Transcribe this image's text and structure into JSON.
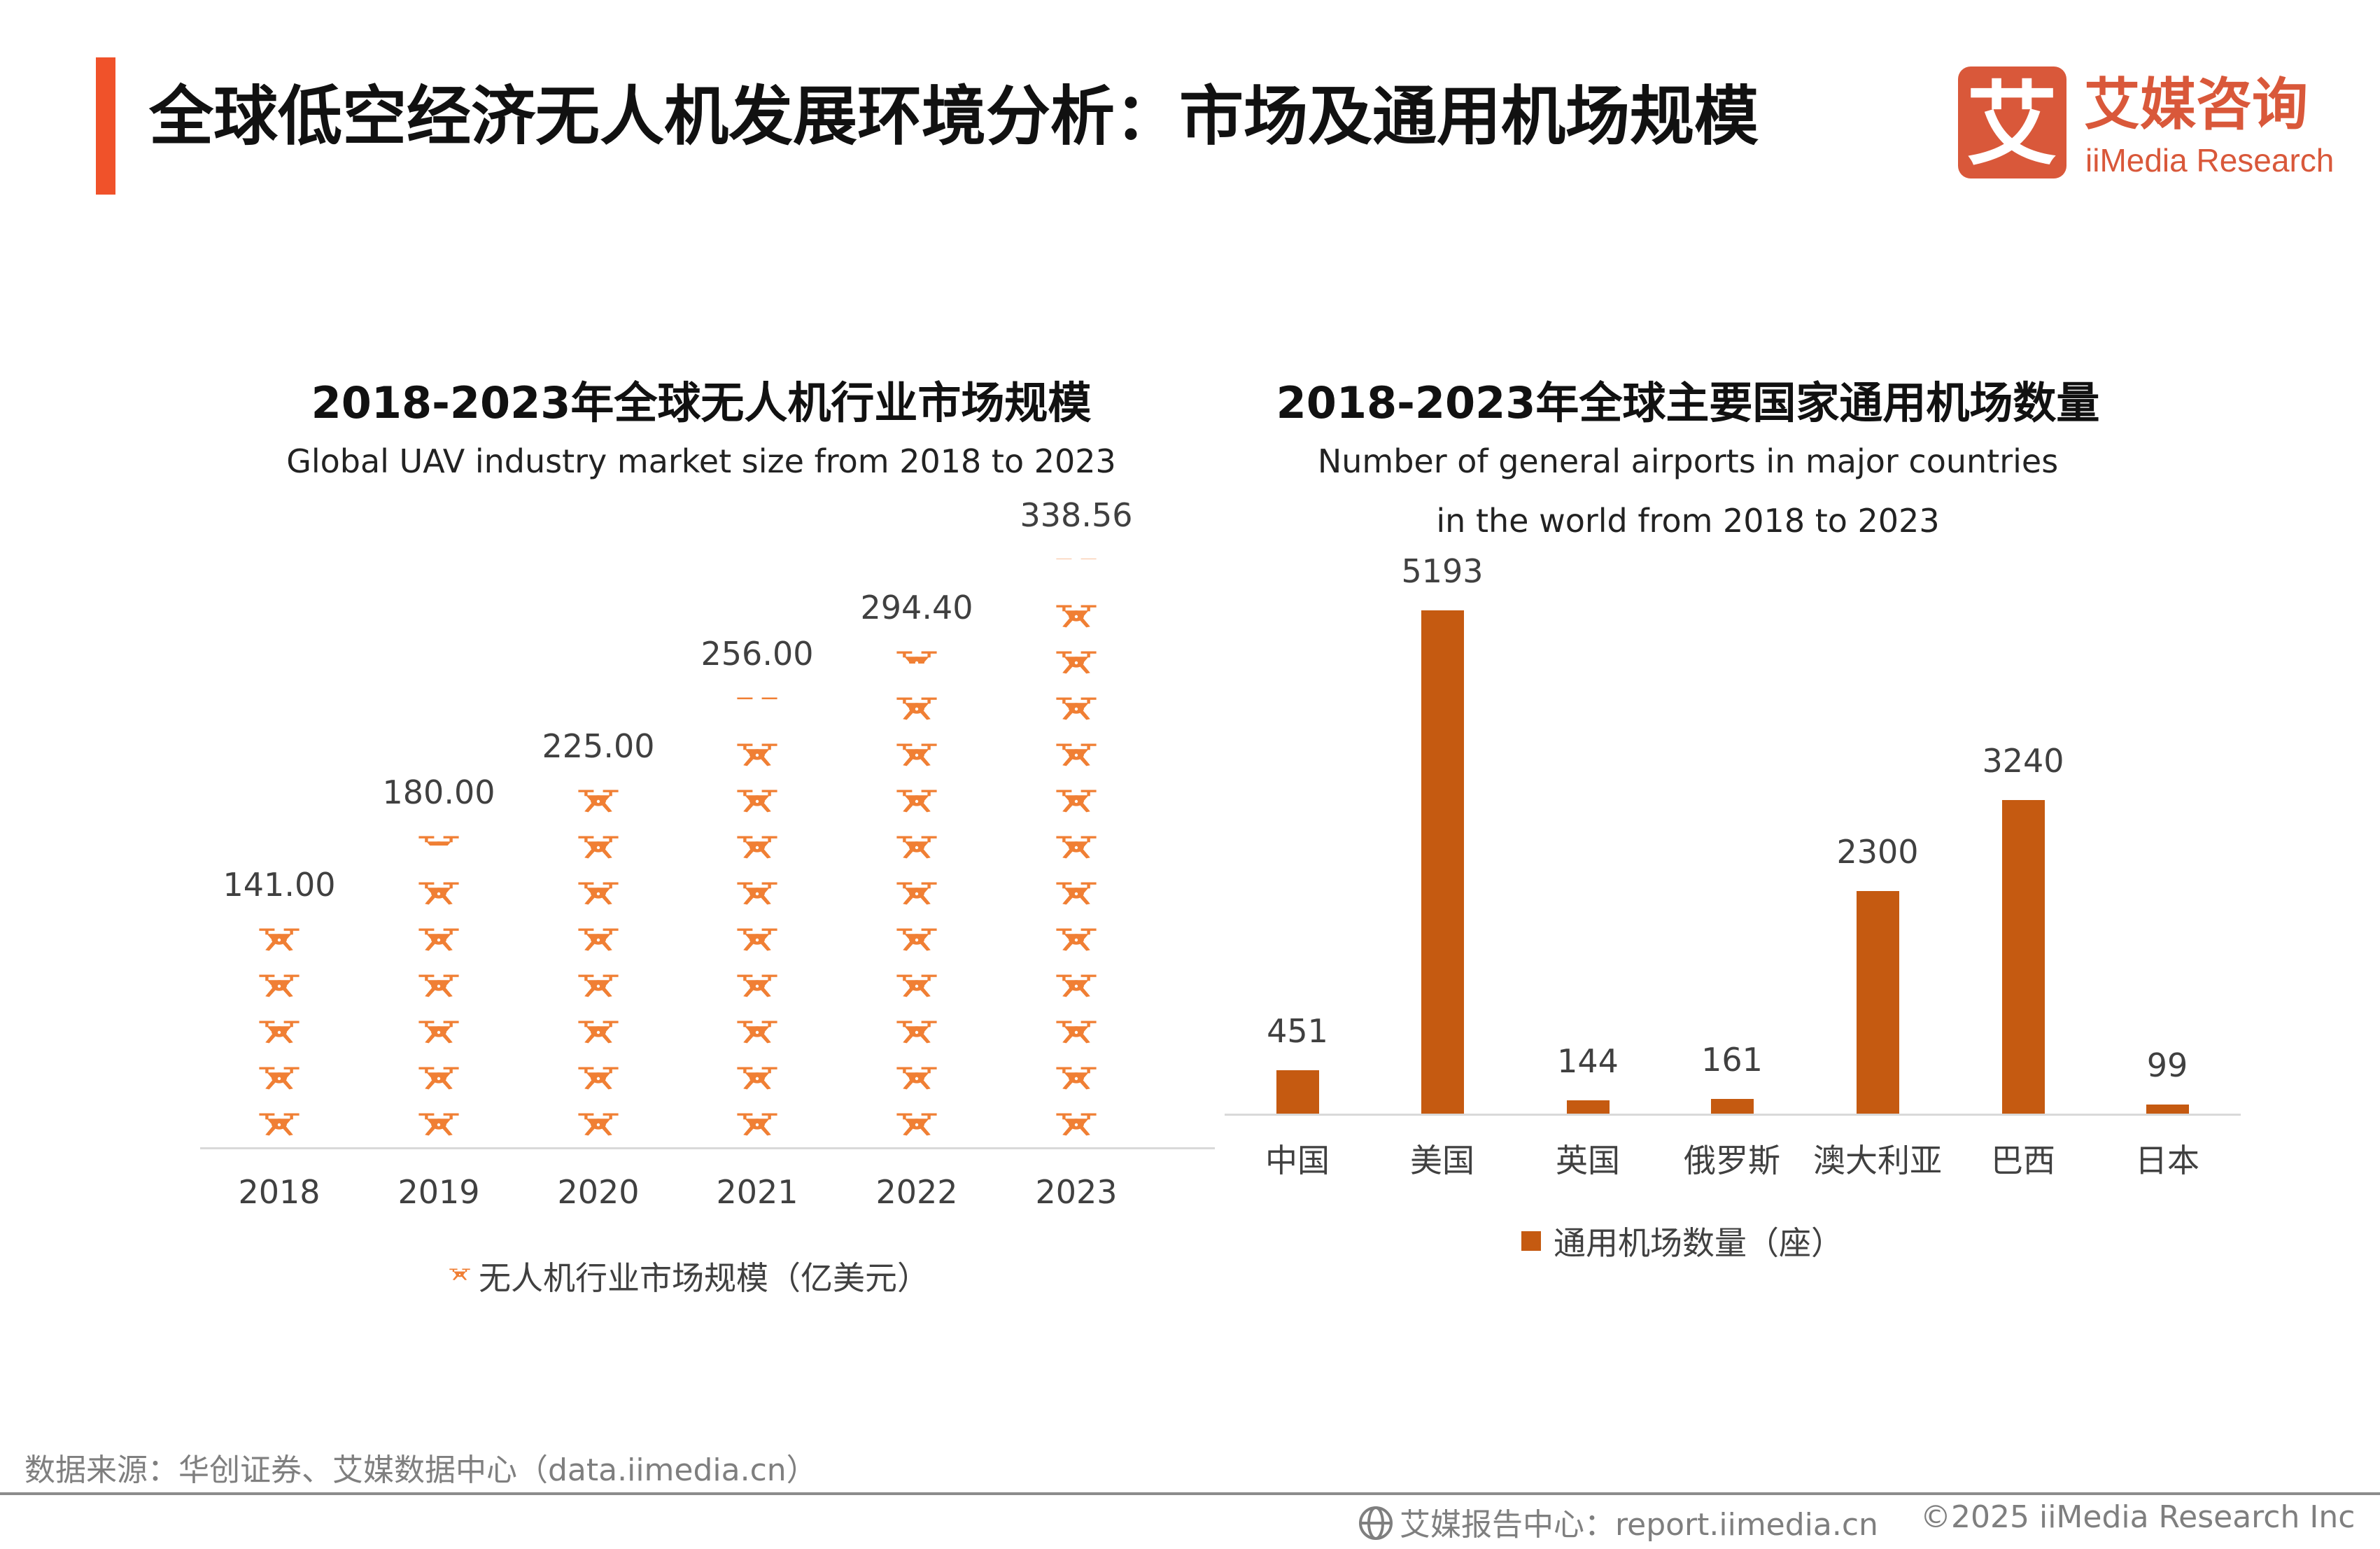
{
  "header": {
    "title": "全球低空经济无人机发展环境分析：市场及通用机场规模",
    "logo_cn": "艾媒咨询",
    "logo_en": "iiMedia Research",
    "logo_mark": "艾"
  },
  "colors": {
    "accent": "#F0522A",
    "drone": "#F07F34",
    "bar": "#C55A11",
    "logo": "#D9583A"
  },
  "chart_data": [
    {
      "type": "bar",
      "style": "pictograph",
      "icon": "drone-icon",
      "title": "2018-2023年全球无人机行业市场规模",
      "subtitle": "Global UAV industry market size from 2018 to 2023",
      "categories": [
        "2018",
        "2019",
        "2020",
        "2021",
        "2022",
        "2023"
      ],
      "series": [
        {
          "name": "无人机行业市场规模（亿美元）",
          "values": [
            141.0,
            180.0,
            225.0,
            256.0,
            294.4,
            338.56
          ]
        }
      ],
      "data_labels": [
        "141.00",
        "180.00",
        "225.00",
        "256.00",
        "294.40",
        "338.56"
      ],
      "legend": "bottom",
      "grid": false
    },
    {
      "type": "bar",
      "title": "2018-2023年全球主要国家通用机场数量",
      "subtitle_lines": [
        "Number of general airports in major countries",
        "in the world from 2018 to 2023"
      ],
      "categories": [
        "中国",
        "美国",
        "英国",
        "俄罗斯",
        "澳大利亚",
        "巴西",
        "日本"
      ],
      "series": [
        {
          "name": "通用机场数量（座）",
          "values": [
            451,
            5193,
            144,
            161,
            2300,
            3240,
            99
          ]
        }
      ],
      "data_labels": [
        "451",
        "5193",
        "144",
        "161",
        "2300",
        "3240",
        "99"
      ],
      "legend": "bottom",
      "grid": false
    }
  ],
  "footer": {
    "source": "数据来源：华创证券、艾媒数据中心（data.iimedia.cn）",
    "report_center": "艾媒报告中心：report.iimedia.cn",
    "copyright": "©2025  iiMedia Research Inc"
  }
}
